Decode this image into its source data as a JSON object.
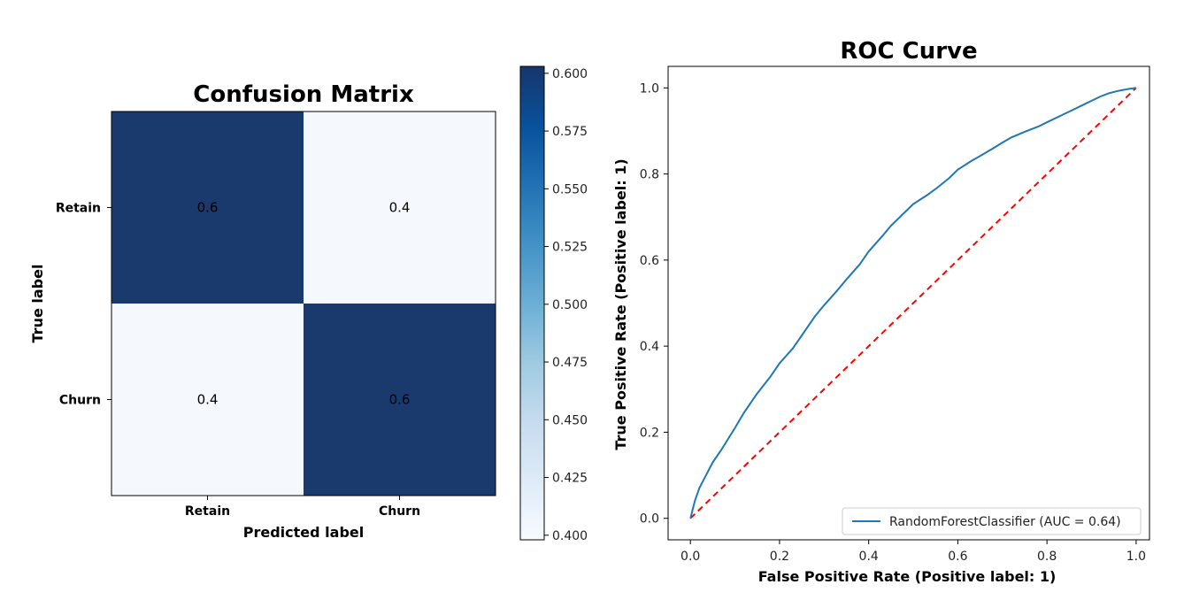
{
  "chart_data": [
    {
      "type": "heatmap",
      "title": "Confusion Matrix",
      "xlabel": "Predicted label",
      "ylabel": "True label",
      "x_categories": [
        "Retain",
        "Churn"
      ],
      "y_categories": [
        "Retain",
        "Churn"
      ],
      "values": [
        [
          0.6,
          0.4
        ],
        [
          0.4,
          0.6
        ]
      ],
      "value_labels": [
        [
          "0.6",
          "0.4"
        ],
        [
          "0.4",
          "0.6"
        ]
      ],
      "colormap": "Blues",
      "colors": {
        "low": "#f7fbff",
        "high": "#17366b"
      },
      "colorbar": {
        "range": [
          0.398,
          0.603
        ],
        "ticks": [
          0.4,
          0.425,
          0.45,
          0.475,
          0.5,
          0.525,
          0.55,
          0.575,
          0.6
        ],
        "tick_labels": [
          "0.400",
          "0.425",
          "0.450",
          "0.475",
          "0.500",
          "0.525",
          "0.550",
          "0.575",
          "0.600"
        ]
      }
    },
    {
      "type": "line",
      "title": "ROC Curve",
      "xlabel": "False Positive Rate (Positive label: 1)",
      "ylabel": "True Positive Rate (Positive label: 1)",
      "xlim": [
        -0.05,
        1.03
      ],
      "ylim": [
        -0.05,
        1.05
      ],
      "xticks": [
        0.0,
        0.2,
        0.4,
        0.6,
        0.8,
        1.0
      ],
      "xtick_labels": [
        "0.0",
        "0.2",
        "0.4",
        "0.6",
        "0.8",
        "1.0"
      ],
      "yticks": [
        0.0,
        0.2,
        0.4,
        0.6,
        0.8,
        1.0
      ],
      "ytick_labels": [
        "0.0",
        "0.2",
        "0.4",
        "0.6",
        "0.8",
        "1.0"
      ],
      "grid": false,
      "legend": "bottom-right",
      "series": [
        {
          "name": "RandomForestClassifier (AUC = 0.64)",
          "color": "#1f77b4",
          "style": "solid",
          "x": [
            0.0,
            0.005,
            0.01,
            0.02,
            0.03,
            0.05,
            0.07,
            0.1,
            0.12,
            0.15,
            0.18,
            0.2,
            0.23,
            0.25,
            0.28,
            0.3,
            0.33,
            0.35,
            0.38,
            0.4,
            0.43,
            0.45,
            0.48,
            0.5,
            0.53,
            0.55,
            0.58,
            0.6,
            0.63,
            0.65,
            0.68,
            0.7,
            0.72,
            0.75,
            0.78,
            0.8,
            0.83,
            0.85,
            0.88,
            0.9,
            0.92,
            0.94,
            0.96,
            0.98,
            1.0
          ],
          "y": [
            0.0,
            0.02,
            0.04,
            0.07,
            0.09,
            0.13,
            0.16,
            0.21,
            0.245,
            0.29,
            0.33,
            0.36,
            0.395,
            0.425,
            0.47,
            0.495,
            0.53,
            0.555,
            0.59,
            0.62,
            0.655,
            0.68,
            0.71,
            0.73,
            0.75,
            0.765,
            0.79,
            0.81,
            0.83,
            0.842,
            0.86,
            0.873,
            0.885,
            0.898,
            0.91,
            0.92,
            0.935,
            0.945,
            0.96,
            0.97,
            0.98,
            0.988,
            0.993,
            0.997,
            1.0
          ]
        },
        {
          "name": "",
          "color": "#ff0000",
          "style": "dashed",
          "x": [
            0.0,
            1.0
          ],
          "y": [
            0.0,
            1.0
          ]
        }
      ]
    }
  ]
}
